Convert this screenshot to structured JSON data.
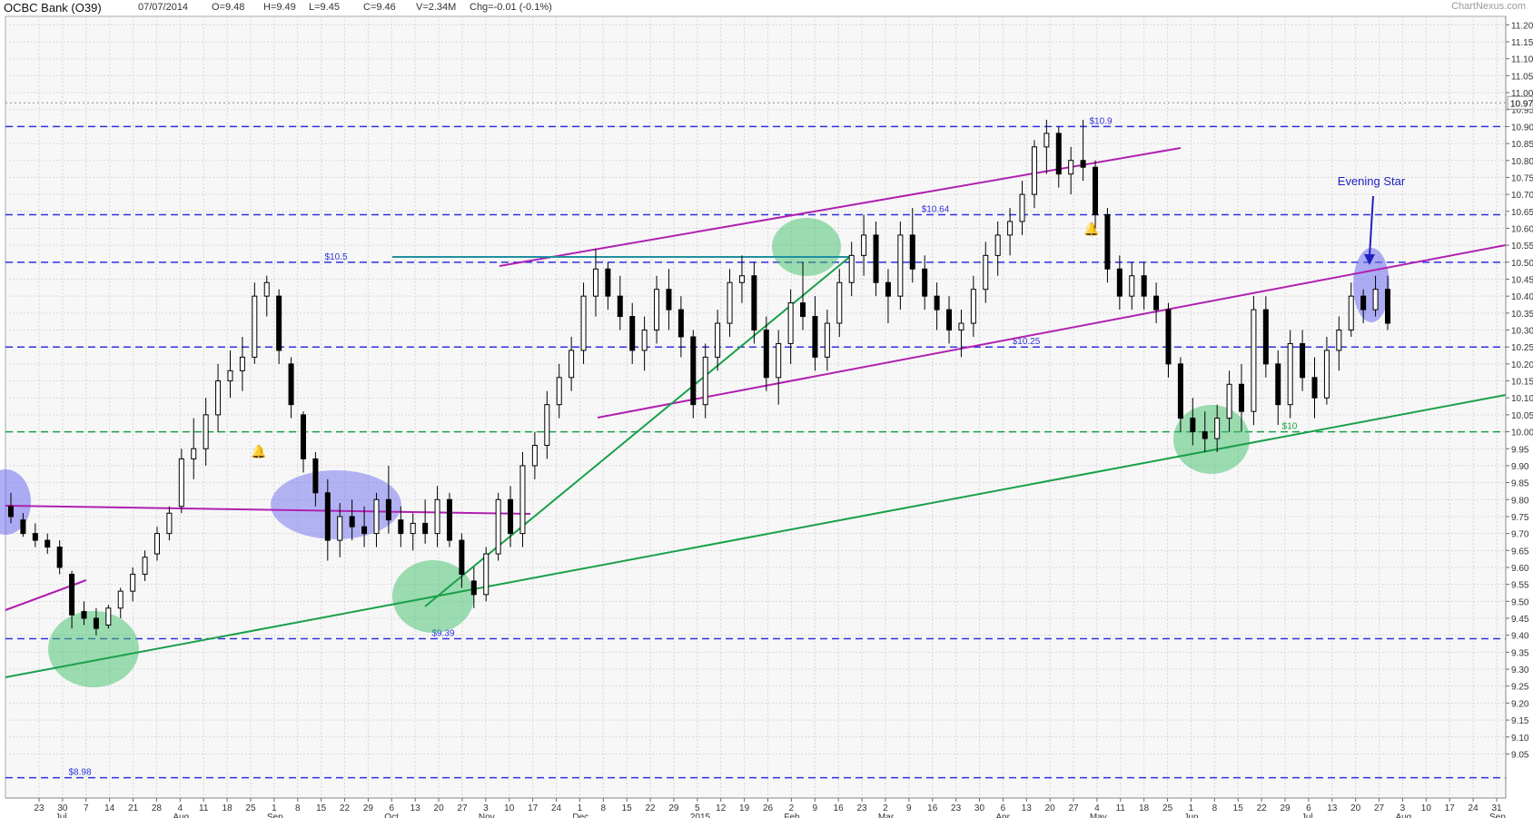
{
  "header": {
    "title": "OCBC Bank (O39)",
    "date": "07/07/2014",
    "open": "O=9.48",
    "high": "H=9.49",
    "low": "L=9.45",
    "close": "C=9.46",
    "volume": "V=2.34M",
    "change": "Chg=-0.01 (-0.1%)",
    "watermark": "ChartNexus.com"
  },
  "chart_data": {
    "type": "candlestick",
    "ylim": [
      9.0,
      11.2
    ],
    "y_ticks": [
      "9.05",
      "9.10",
      "9.15",
      "9.20",
      "9.25",
      "9.30",
      "9.35",
      "9.40",
      "9.45",
      "9.50",
      "9.55",
      "9.60",
      "9.65",
      "9.70",
      "9.75",
      "9.80",
      "9.85",
      "9.90",
      "9.95",
      "10.00",
      "10.05",
      "10.10",
      "10.15",
      "10.20",
      "10.25",
      "10.30",
      "10.35",
      "10.40",
      "10.45",
      "10.50",
      "10.55",
      "10.60",
      "10.65",
      "10.70",
      "10.75",
      "10.80",
      "10.85",
      "10.90",
      "10.95",
      "11.00",
      "11.05",
      "11.10",
      "11.15",
      "11.20"
    ],
    "current_price_marker": "10.97",
    "x_tick_days": [
      "23",
      "30",
      "7",
      "14",
      "21",
      "28",
      "4",
      "11",
      "18",
      "25",
      "1",
      "8",
      "15",
      "22",
      "29",
      "6",
      "13",
      "20",
      "27",
      "3",
      "10",
      "17",
      "24",
      "1",
      "8",
      "15",
      "22",
      "29",
      "5",
      "12",
      "19",
      "26",
      "2",
      "9",
      "16",
      "23",
      "2",
      "9",
      "16",
      "23",
      "30",
      "6",
      "13",
      "20",
      "27",
      "4",
      "11",
      "18",
      "25",
      "1",
      "8",
      "15",
      "22",
      "29",
      "6",
      "13",
      "20",
      "27",
      "3",
      "10",
      "17",
      "24",
      "31"
    ],
    "month_labels": [
      "Jul",
      "Aug",
      "Sep",
      "Oct",
      "Nov",
      "Dec",
      "2015",
      "Feb",
      "Mar",
      "Apr",
      "May",
      "Jun",
      "Jul",
      "Aug",
      "Sep"
    ],
    "horizontal_levels": [
      {
        "price": 10.9,
        "label": "$10.9",
        "color": "#3030dd",
        "style": "dashed"
      },
      {
        "price": 10.64,
        "label": "$10.64",
        "color": "#3030dd",
        "style": "dashed"
      },
      {
        "price": 10.5,
        "label": "$10.5",
        "color": "#3030dd",
        "style": "dashed"
      },
      {
        "price": 10.25,
        "label": "$10.25",
        "color": "#3030dd",
        "style": "dashed"
      },
      {
        "price": 10.0,
        "label": "$10",
        "color": "#1aa04a",
        "style": "dashed"
      },
      {
        "price": 9.39,
        "label": "$9.39",
        "color": "#3030dd",
        "style": "dashed"
      },
      {
        "price": 8.98,
        "label": "$8.98",
        "color": "#3030dd",
        "style": "dashed"
      }
    ],
    "annotation": "Evening Star",
    "candles": [
      [
        9.78,
        9.82,
        9.73,
        9.75
      ],
      [
        9.74,
        9.76,
        9.69,
        9.7
      ],
      [
        9.7,
        9.73,
        9.66,
        9.68
      ],
      [
        9.68,
        9.7,
        9.64,
        9.66
      ],
      [
        9.66,
        9.68,
        9.58,
        9.6
      ],
      [
        9.58,
        9.59,
        9.42,
        9.46
      ],
      [
        9.47,
        9.5,
        9.43,
        9.45
      ],
      [
        9.45,
        9.48,
        9.4,
        9.42
      ],
      [
        9.43,
        9.49,
        9.42,
        9.48
      ],
      [
        9.48,
        9.54,
        9.45,
        9.53
      ],
      [
        9.53,
        9.6,
        9.5,
        9.58
      ],
      [
        9.58,
        9.65,
        9.56,
        9.63
      ],
      [
        9.64,
        9.72,
        9.62,
        9.7
      ],
      [
        9.7,
        9.78,
        9.68,
        9.76
      ],
      [
        9.78,
        9.95,
        9.76,
        9.92
      ],
      [
        9.92,
        10.04,
        9.86,
        9.95
      ],
      [
        9.95,
        10.1,
        9.9,
        10.05
      ],
      [
        10.05,
        10.2,
        10.0,
        10.15
      ],
      [
        10.15,
        10.24,
        10.1,
        10.18
      ],
      [
        10.18,
        10.28,
        10.12,
        10.22
      ],
      [
        10.22,
        10.44,
        10.2,
        10.4
      ],
      [
        10.4,
        10.46,
        10.34,
        10.44
      ],
      [
        10.4,
        10.42,
        10.2,
        10.24
      ],
      [
        10.2,
        10.22,
        10.04,
        10.08
      ],
      [
        10.05,
        10.06,
        9.88,
        9.92
      ],
      [
        9.92,
        9.94,
        9.78,
        9.82
      ],
      [
        9.82,
        9.86,
        9.62,
        9.68
      ],
      [
        9.68,
        9.79,
        9.63,
        9.75
      ],
      [
        9.75,
        9.8,
        9.68,
        9.72
      ],
      [
        9.72,
        9.78,
        9.66,
        9.7
      ],
      [
        9.7,
        9.82,
        9.66,
        9.8
      ],
      [
        9.8,
        9.9,
        9.7,
        9.74
      ],
      [
        9.74,
        9.78,
        9.66,
        9.7
      ],
      [
        9.7,
        9.76,
        9.65,
        9.73
      ],
      [
        9.73,
        9.8,
        9.67,
        9.7
      ],
      [
        9.7,
        9.84,
        9.66,
        9.8
      ],
      [
        9.8,
        9.82,
        9.66,
        9.68
      ],
      [
        9.68,
        9.7,
        9.54,
        9.58
      ],
      [
        9.56,
        9.6,
        9.48,
        9.52
      ],
      [
        9.52,
        9.66,
        9.5,
        9.64
      ],
      [
        9.64,
        9.82,
        9.62,
        9.8
      ],
      [
        9.8,
        9.84,
        9.66,
        9.7
      ],
      [
        9.7,
        9.94,
        9.66,
        9.9
      ],
      [
        9.9,
        10.0,
        9.86,
        9.96
      ],
      [
        9.96,
        10.12,
        9.92,
        10.08
      ],
      [
        10.08,
        10.2,
        10.04,
        10.16
      ],
      [
        10.16,
        10.28,
        10.12,
        10.24
      ],
      [
        10.24,
        10.44,
        10.2,
        10.4
      ],
      [
        10.4,
        10.54,
        10.34,
        10.48
      ],
      [
        10.48,
        10.5,
        10.36,
        10.4
      ],
      [
        10.4,
        10.46,
        10.3,
        10.34
      ],
      [
        10.34,
        10.38,
        10.2,
        10.24
      ],
      [
        10.24,
        10.34,
        10.18,
        10.3
      ],
      [
        10.3,
        10.46,
        10.26,
        10.42
      ],
      [
        10.42,
        10.48,
        10.3,
        10.36
      ],
      [
        10.36,
        10.4,
        10.22,
        10.28
      ],
      [
        10.28,
        10.3,
        10.04,
        10.08
      ],
      [
        10.08,
        10.26,
        10.04,
        10.22
      ],
      [
        10.22,
        10.36,
        10.18,
        10.32
      ],
      [
        10.32,
        10.48,
        10.28,
        10.44
      ],
      [
        10.44,
        10.52,
        10.38,
        10.46
      ],
      [
        10.46,
        10.5,
        10.26,
        10.3
      ],
      [
        10.3,
        10.34,
        10.12,
        10.16
      ],
      [
        10.16,
        10.3,
        10.08,
        10.26
      ],
      [
        10.26,
        10.42,
        10.2,
        10.38
      ],
      [
        10.38,
        10.5,
        10.3,
        10.34
      ],
      [
        10.34,
        10.4,
        10.18,
        10.22
      ],
      [
        10.22,
        10.36,
        10.18,
        10.32
      ],
      [
        10.32,
        10.48,
        10.28,
        10.44
      ],
      [
        10.44,
        10.56,
        10.4,
        10.52
      ],
      [
        10.52,
        10.64,
        10.46,
        10.58
      ],
      [
        10.58,
        10.62,
        10.4,
        10.44
      ],
      [
        10.44,
        10.48,
        10.32,
        10.4
      ],
      [
        10.4,
        10.62,
        10.36,
        10.58
      ],
      [
        10.58,
        10.66,
        10.44,
        10.48
      ],
      [
        10.48,
        10.52,
        10.36,
        10.4
      ],
      [
        10.4,
        10.44,
        10.3,
        10.36
      ],
      [
        10.36,
        10.4,
        10.26,
        10.3
      ],
      [
        10.3,
        10.36,
        10.22,
        10.32
      ],
      [
        10.32,
        10.46,
        10.28,
        10.42
      ],
      [
        10.42,
        10.56,
        10.38,
        10.52
      ],
      [
        10.52,
        10.62,
        10.46,
        10.58
      ],
      [
        10.58,
        10.66,
        10.52,
        10.62
      ],
      [
        10.62,
        10.74,
        10.58,
        10.7
      ],
      [
        10.7,
        10.86,
        10.66,
        10.84
      ],
      [
        10.84,
        10.92,
        10.76,
        10.88
      ],
      [
        10.88,
        10.9,
        10.72,
        10.76
      ],
      [
        10.76,
        10.84,
        10.7,
        10.8
      ],
      [
        10.8,
        10.92,
        10.74,
        10.78
      ],
      [
        10.78,
        10.8,
        10.6,
        10.64
      ],
      [
        10.64,
        10.66,
        10.44,
        10.48
      ],
      [
        10.48,
        10.52,
        10.36,
        10.4
      ],
      [
        10.4,
        10.5,
        10.36,
        10.46
      ],
      [
        10.46,
        10.5,
        10.36,
        10.4
      ],
      [
        10.4,
        10.44,
        10.32,
        10.36
      ],
      [
        10.36,
        10.38,
        10.16,
        10.2
      ],
      [
        10.2,
        10.22,
        10.0,
        10.04
      ],
      [
        10.04,
        10.1,
        9.96,
        10.0
      ],
      [
        10.0,
        10.06,
        9.94,
        9.98
      ],
      [
        9.98,
        10.08,
        9.94,
        10.04
      ],
      [
        10.04,
        10.18,
        10.0,
        10.14
      ],
      [
        10.14,
        10.2,
        10.0,
        10.06
      ],
      [
        10.06,
        10.4,
        10.02,
        10.36
      ],
      [
        10.36,
        10.4,
        10.16,
        10.2
      ],
      [
        10.2,
        10.24,
        10.02,
        10.08
      ],
      [
        10.08,
        10.3,
        10.04,
        10.26
      ],
      [
        10.26,
        10.3,
        10.12,
        10.16
      ],
      [
        10.16,
        10.22,
        10.04,
        10.1
      ],
      [
        10.1,
        10.28,
        10.08,
        10.24
      ],
      [
        10.24,
        10.34,
        10.18,
        10.3
      ],
      [
        10.3,
        10.44,
        10.28,
        10.4
      ],
      [
        10.4,
        10.42,
        10.32,
        10.36
      ],
      [
        10.36,
        10.46,
        10.34,
        10.42
      ],
      [
        10.42,
        10.46,
        10.3,
        10.32
      ]
    ]
  }
}
